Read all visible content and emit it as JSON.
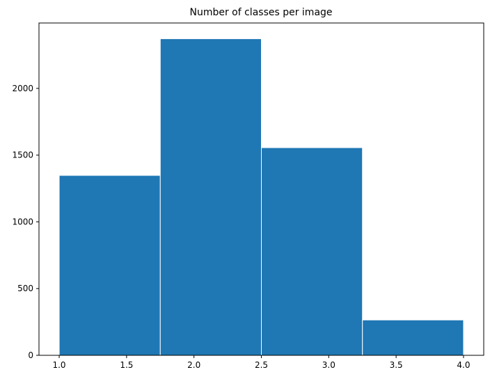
{
  "chart_data": {
    "type": "bar",
    "title": "Number of classes per image",
    "xlabel": "",
    "ylabel": "",
    "bins": [
      {
        "x0": 1.0,
        "x1": 1.75,
        "value": 1348
      },
      {
        "x0": 1.75,
        "x1": 2.5,
        "value": 2372
      },
      {
        "x0": 2.5,
        "x1": 3.25,
        "value": 1556
      },
      {
        "x0": 3.25,
        "x1": 4.0,
        "value": 265
      }
    ],
    "xlim": [
      0.85,
      4.15
    ],
    "ylim": [
      0,
      2490
    ],
    "xticks": [
      1.0,
      1.5,
      2.0,
      2.5,
      3.0,
      3.5,
      4.0
    ],
    "xtick_labels": [
      "1.0",
      "1.5",
      "2.0",
      "2.5",
      "3.0",
      "3.5",
      "4.0"
    ],
    "yticks": [
      0,
      500,
      1000,
      1500,
      2000
    ],
    "ytick_labels": [
      "0",
      "500",
      "1000",
      "1500",
      "2000"
    ],
    "grid": false,
    "bar_color": "#1f77b4",
    "edge_color": "#ffffff"
  }
}
